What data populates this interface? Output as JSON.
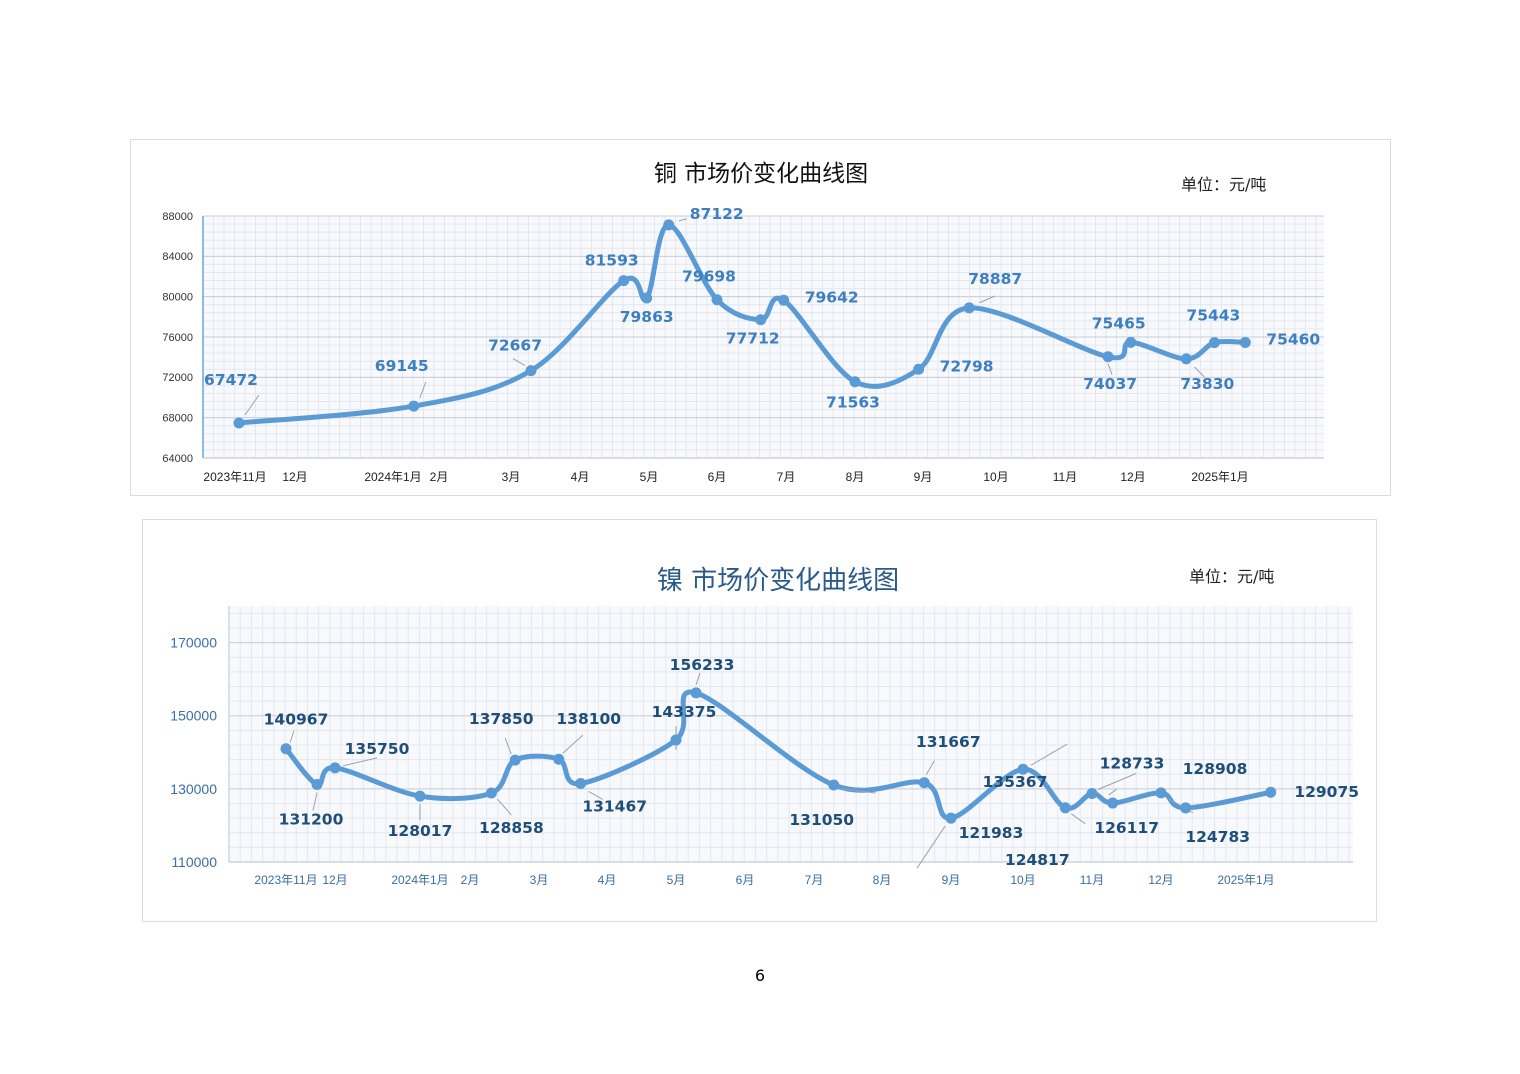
{
  "page_number": "6",
  "chart_data": [
    {
      "type": "line",
      "title": "铜  市场价变化曲线图",
      "unit_label": "单位：元/吨",
      "y_ticks": [
        "88000",
        "84000",
        "80000",
        "76000",
        "72000",
        "68000",
        "64000"
      ],
      "ylim": [
        64000,
        88000
      ],
      "x_month_labels": [
        "2023年11月",
        "12月",
        "2024年1月",
        "2月",
        "3月",
        "4月",
        "5月",
        "6月",
        "7月",
        "8月",
        "9月",
        "10月",
        "11月",
        "12月",
        "2025年1月"
      ],
      "grid": true,
      "color": "#5b9bd5",
      "series": [
        {
          "marked_points": [
            {
              "date": "2023-11-03",
              "value": 67472,
              "label": "67472"
            },
            {
              "date": "2024-01-15",
              "value": 69145,
              "label": "69145"
            },
            {
              "date": "2024-03-10",
              "value": 72667,
              "label": "72667"
            },
            {
              "date": "2024-04-20",
              "value": 81593,
              "label": "81593"
            },
            {
              "date": "2024-04-30",
              "value": 79863,
              "label": "79863"
            },
            {
              "date": "2024-05-10",
              "value": 87122,
              "label": "87122"
            },
            {
              "date": "2024-06-01",
              "value": 79698,
              "label": "79698"
            },
            {
              "date": "2024-06-20",
              "value": 77712,
              "label": "77712"
            },
            {
              "date": "2024-06-30",
              "value": 79642,
              "label": "79642"
            },
            {
              "date": "2024-08-01",
              "value": 71563,
              "label": "71563"
            },
            {
              "date": "2024-08-30",
              "value": 72798,
              "label": "72798"
            },
            {
              "date": "2024-09-20",
              "value": 78887,
              "label": "78887"
            },
            {
              "date": "2024-11-20",
              "value": 74037,
              "label": "74037"
            },
            {
              "date": "2024-11-30",
              "value": 75465,
              "label": "75465"
            },
            {
              "date": "2024-12-20",
              "value": 73830,
              "label": "73830"
            },
            {
              "date": "2024-12-30",
              "value": 75443,
              "label": "75443"
            },
            {
              "date": "2025-01-10",
              "value": 75460,
              "label": "75460"
            }
          ]
        }
      ]
    },
    {
      "type": "line",
      "title": "镍  市场价变化曲线图",
      "unit_label": "单位：元/吨",
      "y_ticks": [
        "170000",
        "150000",
        "130000",
        "110000"
      ],
      "ylim": [
        110000,
        180000
      ],
      "x_month_labels": [
        "2023年11月",
        "12月",
        "2024年1月",
        "2月",
        "3月",
        "4月",
        "5月",
        "6月",
        "7月",
        "8月",
        "9月",
        "10月",
        "11月",
        "12月",
        "2025年1月"
      ],
      "grid": true,
      "color": "#5b9bd5",
      "series": [
        {
          "marked_points": [
            {
              "date": "2023-11-01",
              "value": 140967,
              "label": "140967"
            },
            {
              "date": "2023-11-20",
              "value": 131200,
              "label": "131200"
            },
            {
              "date": "2023-12-01",
              "value": 135750,
              "label": "135750"
            },
            {
              "date": "2024-01-01",
              "value": 128017,
              "label": "128017"
            },
            {
              "date": "2024-02-10",
              "value": 128858,
              "label": "128858"
            },
            {
              "date": "2024-02-20",
              "value": 137850,
              "label": "137850"
            },
            {
              "date": "2024-03-10",
              "value": 138100,
              "label": "138100"
            },
            {
              "date": "2024-03-20",
              "value": 131467,
              "label": "131467"
            },
            {
              "date": "2024-05-01",
              "value": 143375,
              "label": "143375"
            },
            {
              "date": "2024-05-10",
              "value": 156233,
              "label": "156233"
            },
            {
              "date": "2024-07-10",
              "value": 131050,
              "label": "131050"
            },
            {
              "date": "2024-08-20",
              "value": 131667,
              "label": "131667"
            },
            {
              "date": "2024-09-01",
              "value": 121983,
              "label": "121983"
            },
            {
              "date": "2024-10-01",
              "value": 135367,
              "label": "135367"
            },
            {
              "date": "2024-10-20",
              "value": 124817,
              "label": "124817"
            },
            {
              "date": "2024-11-01",
              "value": 128733,
              "label": "128733"
            },
            {
              "date": "2024-11-10",
              "value": 126117,
              "label": "126117"
            },
            {
              "date": "2024-12-01",
              "value": 128908,
              "label": "128908"
            },
            {
              "date": "2024-12-10",
              "value": 124783,
              "label": "124783"
            },
            {
              "date": "2025-01-10",
              "value": 129075,
              "label": "129075"
            }
          ]
        }
      ]
    }
  ]
}
